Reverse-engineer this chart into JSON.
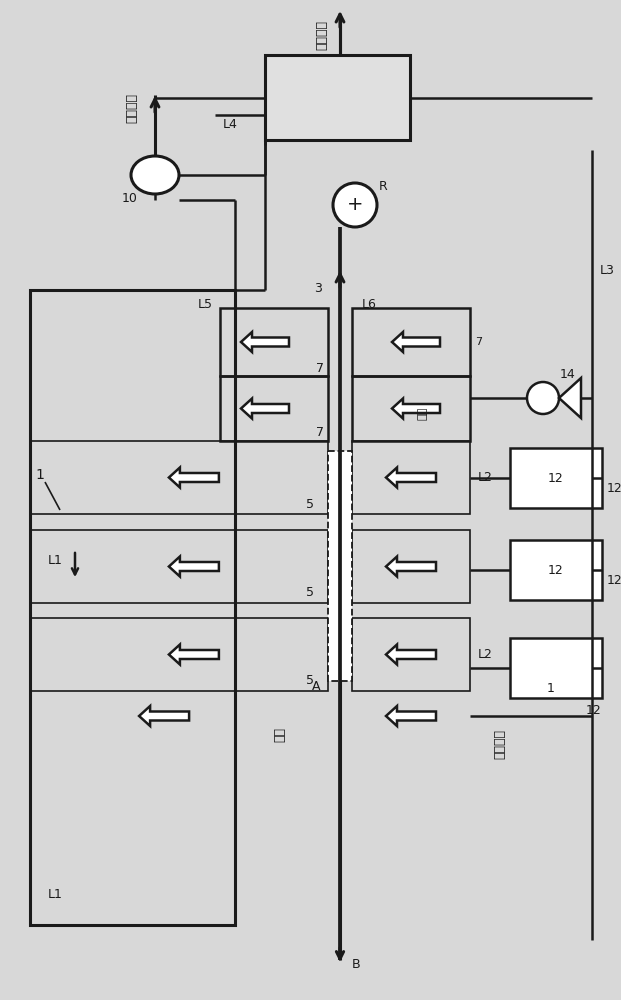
{
  "bg_color": "#d8d8d8",
  "line_color": "#1a1a1a",
  "text_color": "#1a1a1a",
  "fig_w": 6.21,
  "fig_h": 10.0,
  "dpi": 100,
  "labels": {
    "hui_shou_rong_ji": "回收溶劑",
    "hui_xing_qi_ti_top": "惰性氣體",
    "fei_qi": "廢氣",
    "hui_xing_qi_ti_bot": "惰性氣體",
    "kong_qi": "空氣",
    "L1a": "L1",
    "L1b": "L1",
    "L2a": "L2",
    "L2b": "L2",
    "L3": "L3",
    "L4": "L4",
    "L5": "L5",
    "L6": "L6",
    "n1": "1",
    "n3": "3",
    "n5a": "5",
    "n5b": "5",
    "n5c": "5",
    "n7a": "7",
    "n7b": "7",
    "n7c": "7",
    "n10": "10",
    "n12a": "12",
    "n12b": "12",
    "n14": "14",
    "R": "R",
    "A": "A",
    "B": "B"
  }
}
